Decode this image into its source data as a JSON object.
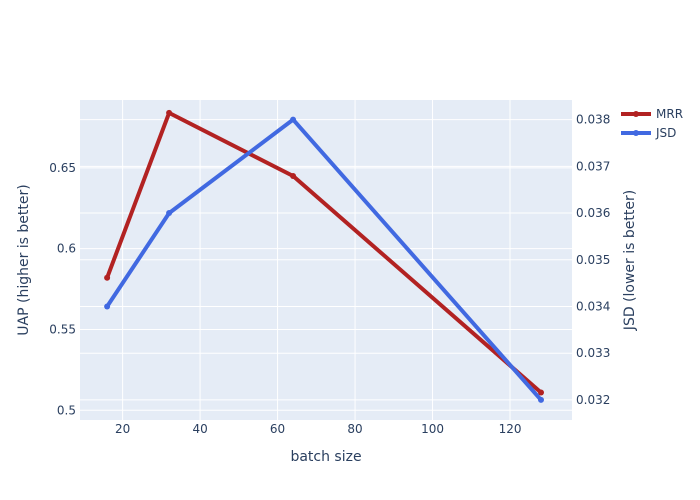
{
  "chart_data": {
    "type": "line",
    "x": [
      16,
      32,
      64,
      128
    ],
    "xlabel": "batch size",
    "xlim": [
      9,
      136
    ],
    "x_ticks": [
      20,
      40,
      60,
      80,
      100,
      120
    ],
    "y_left": {
      "label": "UAP (higher is better)",
      "lim": [
        0.494,
        0.692
      ],
      "ticks": [
        0.5,
        0.55,
        0.6,
        0.65
      ],
      "tick_labels": [
        "0.5",
        "0.55",
        "0.6",
        "0.65"
      ]
    },
    "y_right": {
      "label": "JSD (lower is better)",
      "lim": [
        0.03157,
        0.03842
      ],
      "ticks": [
        0.032,
        0.033,
        0.034,
        0.035,
        0.036,
        0.037,
        0.038
      ],
      "tick_labels": [
        "0.032",
        "0.033",
        "0.034",
        "0.035",
        "0.036",
        "0.037",
        "0.038"
      ]
    },
    "series": [
      {
        "name": "MRR",
        "axis": "left",
        "color": "#b22222",
        "values": [
          0.582,
          0.684,
          0.645,
          0.511
        ]
      },
      {
        "name": "JSD",
        "axis": "right",
        "color": "#4169e1",
        "values": [
          0.034,
          0.036,
          0.038,
          0.032
        ]
      }
    ],
    "grid": true,
    "legend_position": "top-right"
  },
  "colors": {
    "plot_bg": "#e5ecf6",
    "grid": "#ffffff",
    "text": "#2a3f5f"
  }
}
